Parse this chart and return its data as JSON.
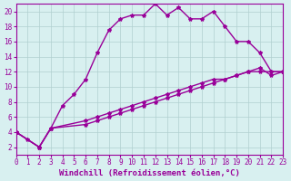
{
  "line1_x": [
    0,
    1,
    2,
    3,
    4,
    5,
    6,
    7,
    8,
    9,
    10,
    11,
    12,
    13,
    14,
    15,
    16,
    17,
    18,
    19,
    20,
    21,
    22,
    23
  ],
  "line1_y": [
    4,
    3,
    2,
    4.5,
    7.5,
    9,
    11,
    14.5,
    17.5,
    19,
    19.5,
    19.5,
    21,
    19.5,
    20.5,
    19,
    19,
    20,
    18,
    16,
    16,
    14.5,
    12,
    12
  ],
  "line2_x": [
    0,
    2,
    3,
    6,
    7,
    8,
    9,
    10,
    11,
    12,
    13,
    14,
    15,
    16,
    17,
    18,
    19,
    20,
    21,
    22,
    23
  ],
  "line2_y": [
    4,
    2,
    4.5,
    5.5,
    6,
    6.5,
    7,
    7.5,
    8,
    8.5,
    9,
    9.5,
    10,
    10.5,
    11,
    11,
    11.5,
    12,
    12,
    12,
    12
  ],
  "line3_x": [
    0,
    2,
    3,
    6,
    7,
    8,
    9,
    10,
    11,
    12,
    13,
    14,
    15,
    16,
    17,
    18,
    19,
    20,
    21,
    22,
    23
  ],
  "line3_y": [
    4,
    2,
    4.5,
    5.0,
    5.5,
    6.0,
    6.5,
    7.0,
    7.5,
    8.0,
    8.5,
    9.0,
    9.5,
    10.0,
    10.5,
    11.0,
    11.5,
    12.0,
    12.5,
    11.5,
    12.0
  ],
  "line_color": "#990099",
  "bg_color": "#d8f0f0",
  "grid_color": "#b0d0d0",
  "xlabel": "Windchill (Refroidissement éolien,°C)",
  "xlim": [
    0,
    23
  ],
  "ylim": [
    1,
    21
  ],
  "yticks": [
    2,
    4,
    6,
    8,
    10,
    12,
    14,
    16,
    18,
    20
  ],
  "xticks": [
    0,
    1,
    2,
    3,
    4,
    5,
    6,
    7,
    8,
    9,
    10,
    11,
    12,
    13,
    14,
    15,
    16,
    17,
    18,
    19,
    20,
    21,
    22,
    23
  ],
  "tick_fontsize": 5.5,
  "xlabel_fontsize": 6.5,
  "marker_size": 3,
  "line_width": 1.0
}
